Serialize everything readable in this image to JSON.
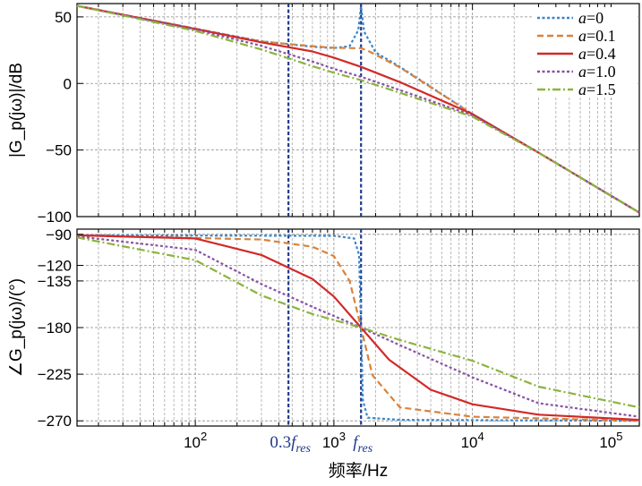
{
  "chart_data": [
    {
      "type": "line",
      "panel": "magnitude",
      "ylabel": "|G_p(jω)|/dB",
      "xscale": "log",
      "xlim": [
        14,
        160000
      ],
      "ylim": [
        -100,
        60
      ],
      "yticks": [
        {
          "value": 50,
          "label": "50"
        },
        {
          "value": 0,
          "label": "0"
        },
        {
          "value": -50,
          "label": "−50"
        },
        {
          "value": -100,
          "label": "−100"
        }
      ],
      "grid": true,
      "legend_position": "top-right",
      "series": [
        {
          "name": "a=0",
          "color": "#3a86c8",
          "dash": "dotted",
          "points": [
            [
              14,
              58.3
            ],
            [
              100,
              41.2
            ],
            [
              300,
              31.7
            ],
            [
              700,
              27.6
            ],
            [
              1000,
              26.6
            ],
            [
              1300,
              28.1
            ],
            [
              1500,
              40
            ],
            [
              1570,
              58
            ],
            [
              1650,
              39
            ],
            [
              2000,
              23.3
            ],
            [
              3000,
              12.5
            ],
            [
              10000,
              -23
            ],
            [
              30000,
              -52
            ],
            [
              160000,
              -97
            ]
          ]
        },
        {
          "name": "a=0.1",
          "color": "#d9823b",
          "dash": "dashed",
          "points": [
            [
              14,
              58.3
            ],
            [
              100,
              41.2
            ],
            [
              300,
              31.5
            ],
            [
              700,
              28
            ],
            [
              1000,
              26.8
            ],
            [
              1400,
              26.5
            ],
            [
              1570,
              26.5
            ],
            [
              1800,
              24
            ],
            [
              3000,
              12
            ],
            [
              10000,
              -23
            ],
            [
              30000,
              -52
            ],
            [
              160000,
              -97
            ]
          ]
        },
        {
          "name": "a=0.4",
          "color": "#d12a2a",
          "dash": "solid",
          "points": [
            [
              14,
              58.3
            ],
            [
              100,
              41
            ],
            [
              300,
              30.9
            ],
            [
              700,
              24
            ],
            [
              1000,
              19.4
            ],
            [
              1570,
              12.5
            ],
            [
              3000,
              1
            ],
            [
              10000,
              -23
            ],
            [
              30000,
              -52
            ],
            [
              160000,
              -97
            ]
          ]
        },
        {
          "name": "a=1.0",
          "color": "#8a52a6",
          "dash": "dotted",
          "points": [
            [
              14,
              58.3
            ],
            [
              100,
              40.5
            ],
            [
              300,
              28.3
            ],
            [
              700,
              16.5
            ],
            [
              1000,
              11
            ],
            [
              1570,
              5
            ],
            [
              3000,
              -5
            ],
            [
              10000,
              -24
            ],
            [
              30000,
              -52
            ],
            [
              160000,
              -97
            ]
          ]
        },
        {
          "name": "a=1.5",
          "color": "#8bb43e",
          "dash": "dashdot",
          "points": [
            [
              14,
              58.3
            ],
            [
              100,
              39.5
            ],
            [
              300,
              25.5
            ],
            [
              700,
              13
            ],
            [
              1000,
              8
            ],
            [
              1570,
              2.5
            ],
            [
              3000,
              -7
            ],
            [
              10000,
              -25
            ],
            [
              30000,
              -52
            ],
            [
              160000,
              -97
            ]
          ]
        }
      ]
    },
    {
      "type": "line",
      "panel": "phase",
      "ylabel": "∠G_p(jω)/(°)",
      "xlabel": "频率/Hz",
      "xscale": "log",
      "xlim": [
        14,
        160000
      ],
      "ylim": [
        -275,
        -85
      ],
      "xticks": [
        {
          "value": 100,
          "base": "10",
          "exp": "2"
        },
        {
          "value": 1000,
          "base": "10",
          "exp": "3"
        },
        {
          "value": 10000,
          "base": "10",
          "exp": "4"
        },
        {
          "value": 100000,
          "base": "10",
          "exp": "5"
        }
      ],
      "yticks": [
        {
          "value": -90,
          "label": "−90"
        },
        {
          "value": -120,
          "label": "−120"
        },
        {
          "value": -135,
          "label": "−135"
        },
        {
          "value": -180,
          "label": "−180"
        },
        {
          "value": -225,
          "label": "−225"
        },
        {
          "value": -270,
          "label": "−270"
        }
      ],
      "grid": true,
      "series": [
        {
          "name": "a=0",
          "color": "#3a86c8",
          "dash": "dotted",
          "points": [
            [
              14,
              -91
            ],
            [
              1000,
              -91.5
            ],
            [
              1400,
              -94
            ],
            [
              1520,
              -110
            ],
            [
              1570,
              -180
            ],
            [
              1620,
              -250
            ],
            [
              1750,
              -267
            ],
            [
              3000,
              -269
            ],
            [
              160000,
              -270
            ]
          ]
        },
        {
          "name": "a=0.1",
          "color": "#d9823b",
          "dash": "dashed",
          "points": [
            [
              14,
              -91
            ],
            [
              300,
              -95
            ],
            [
              700,
              -102
            ],
            [
              1000,
              -111
            ],
            [
              1300,
              -135
            ],
            [
              1570,
              -180
            ],
            [
              1900,
              -226
            ],
            [
              3000,
              -257
            ],
            [
              10000,
              -266
            ],
            [
              160000,
              -270
            ]
          ]
        },
        {
          "name": "a=0.4",
          "color": "#d12a2a",
          "dash": "solid",
          "points": [
            [
              14,
              -91
            ],
            [
              100,
              -94
            ],
            [
              300,
              -110
            ],
            [
              700,
              -133
            ],
            [
              1000,
              -150
            ],
            [
              1570,
              -180
            ],
            [
              2500,
              -211
            ],
            [
              5000,
              -240
            ],
            [
              10000,
              -254
            ],
            [
              30000,
              -264
            ],
            [
              160000,
              -269
            ]
          ]
        },
        {
          "name": "a=1.0",
          "color": "#8a52a6",
          "dash": "dotted",
          "points": [
            [
              14,
              -92
            ],
            [
              100,
              -105
            ],
            [
              300,
              -138
            ],
            [
              700,
              -160
            ],
            [
              1570,
              -180
            ],
            [
              3000,
              -197
            ],
            [
              10000,
              -228
            ],
            [
              30000,
              -253
            ],
            [
              160000,
              -266
            ]
          ]
        },
        {
          "name": "a=1.5",
          "color": "#8bb43e",
          "dash": "dashdot",
          "points": [
            [
              14,
              -93
            ],
            [
              100,
              -115
            ],
            [
              300,
              -149
            ],
            [
              700,
              -167
            ],
            [
              1570,
              -180
            ],
            [
              3000,
              -192
            ],
            [
              10000,
              -212
            ],
            [
              30000,
              -237
            ],
            [
              160000,
              -257
            ]
          ]
        }
      ]
    }
  ],
  "markers": {
    "color": "#1f3a8a",
    "lines": [
      {
        "freq": 470,
        "label_prefix": "0.3",
        "label_base": "f",
        "label_sub": "res"
      },
      {
        "freq": 1570,
        "label_prefix": "",
        "label_base": "f",
        "label_sub": "res"
      }
    ]
  }
}
